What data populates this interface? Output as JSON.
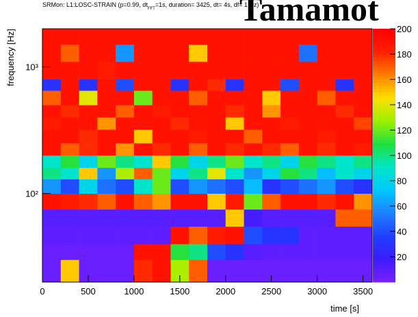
{
  "chart_data": {
    "type": "heatmap",
    "title": "SRMon: L1:LOSC-STRAIN (p=0.99,  dt",
    "title_subscript": "FFT",
    "title_tail": "=1s, duration= 3425, dt= 4s, df= 1 Hz)",
    "xlabel": "time [s]",
    "ylabel": "frequency [Hz]",
    "x": [
      0,
      200,
      400,
      600,
      800,
      1000,
      1200,
      1400,
      1600,
      1800,
      2000,
      2200,
      2400,
      2600,
      2800,
      3000,
      3200,
      3400,
      3600
    ],
    "y": [
      20,
      30,
      40,
      55,
      75,
      100,
      130,
      160,
      200,
      250,
      320,
      400,
      500,
      650,
      800,
      1100,
      1500,
      2000
    ],
    "z": [
      [
        5,
        150,
        5,
        5,
        5,
        180,
        190,
        130,
        170,
        5,
        5,
        5,
        5,
        5,
        5,
        5,
        5,
        5
      ],
      [
        5,
        5,
        5,
        5,
        5,
        190,
        190,
        110,
        100,
        40,
        30,
        10,
        8,
        8,
        8,
        8,
        8,
        8
      ],
      [
        8,
        8,
        8,
        8,
        8,
        8,
        8,
        190,
        170,
        185,
        190,
        40,
        30,
        30,
        8,
        8,
        8,
        8
      ],
      [
        10,
        10,
        10,
        10,
        10,
        10,
        10,
        10,
        10,
        10,
        150,
        15,
        10,
        10,
        10,
        10,
        170,
        170
      ],
      [
        190,
        185,
        180,
        170,
        190,
        170,
        160,
        190,
        190,
        150,
        185,
        120,
        170,
        190,
        190,
        180,
        190,
        160
      ],
      [
        60,
        40,
        80,
        50,
        40,
        90,
        120,
        40,
        60,
        50,
        40,
        70,
        30,
        40,
        50,
        60,
        40,
        30
      ],
      [
        100,
        90,
        150,
        60,
        130,
        170,
        120,
        80,
        100,
        140,
        90,
        60,
        80,
        110,
        100,
        70,
        90,
        80
      ],
      [
        90,
        110,
        80,
        120,
        100,
        90,
        150,
        110,
        80,
        100,
        120,
        90,
        100,
        80,
        110,
        100,
        90,
        100
      ],
      [
        190,
        170,
        180,
        190,
        160,
        190,
        180,
        190,
        170,
        190,
        180,
        190,
        180,
        170,
        190,
        180,
        190,
        185
      ],
      [
        190,
        190,
        180,
        190,
        190,
        150,
        190,
        190,
        185,
        190,
        190,
        170,
        190,
        190,
        190,
        185,
        190,
        190
      ],
      [
        185,
        190,
        190,
        160,
        190,
        190,
        190,
        180,
        190,
        190,
        150,
        190,
        190,
        185,
        190,
        190,
        190,
        175
      ],
      [
        190,
        180,
        190,
        190,
        170,
        190,
        185,
        190,
        190,
        190,
        180,
        190,
        160,
        190,
        190,
        190,
        180,
        190
      ],
      [
        170,
        190,
        140,
        190,
        190,
        120,
        190,
        190,
        170,
        190,
        190,
        190,
        150,
        190,
        190,
        170,
        190,
        190
      ],
      [
        30,
        190,
        30,
        190,
        40,
        190,
        190,
        30,
        190,
        180,
        30,
        190,
        190,
        40,
        190,
        190,
        30,
        190
      ],
      [
        190,
        190,
        190,
        185,
        190,
        190,
        190,
        190,
        190,
        190,
        190,
        190,
        190,
        190,
        190,
        190,
        190,
        190
      ],
      [
        190,
        170,
        190,
        190,
        60,
        190,
        190,
        190,
        150,
        190,
        190,
        190,
        190,
        190,
        50,
        190,
        190,
        190
      ],
      [
        190,
        190,
        190,
        190,
        190,
        190,
        190,
        190,
        190,
        190,
        190,
        190,
        190,
        190,
        190,
        190,
        190,
        190
      ]
    ],
    "xlim": [
      0,
      3600
    ],
    "xticks": [
      0,
      500,
      1000,
      1500,
      2000,
      2500,
      3000,
      3500
    ],
    "ylim": [
      20,
      2000
    ],
    "ylog": true,
    "yticks": [
      {
        "value": 100,
        "label": "10²"
      },
      {
        "value": 1000,
        "label": "10³"
      }
    ],
    "zlim": [
      0,
      200
    ],
    "zticks": [
      20,
      40,
      60,
      80,
      100,
      120,
      140,
      160,
      180,
      200
    ],
    "colormap": [
      "#7b20ff",
      "#3a1cff",
      "#1f40ff",
      "#1e80ff",
      "#00c8ff",
      "#00e6c8",
      "#20e040",
      "#9cf000",
      "#ffe000",
      "#ff8000",
      "#ff2000",
      "#ff0000"
    ]
  },
  "watermark": "Tamamot"
}
